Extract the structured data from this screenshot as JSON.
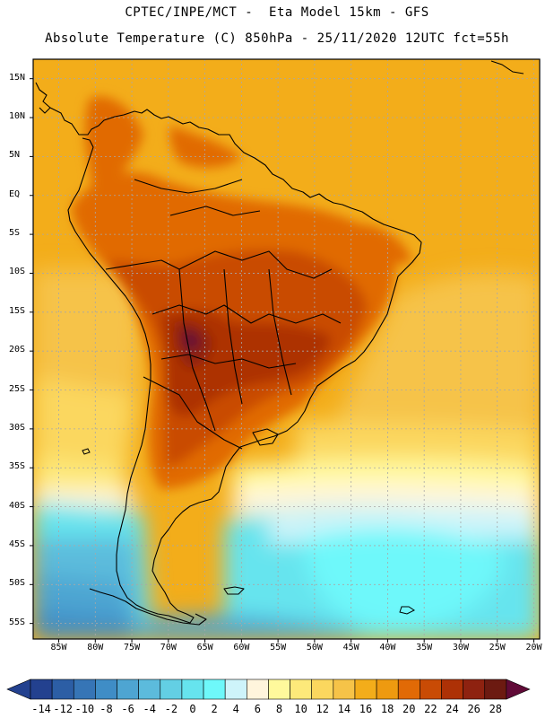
{
  "header": {
    "title_line1": "CPTEC/INPE/MCT -  Eta Model 15km - GFS",
    "title_line2": "Absolute Temperature (C) 850hPa - 25/11/2020 12UTC fct=55h"
  },
  "map": {
    "lat_ticks": [
      {
        "lat": 15,
        "label": "15N"
      },
      {
        "lat": 10,
        "label": "10N"
      },
      {
        "lat": 5,
        "label": "5N"
      },
      {
        "lat": 0,
        "label": "EQ"
      },
      {
        "lat": -5,
        "label": "5S"
      },
      {
        "lat": -10,
        "label": "10S"
      },
      {
        "lat": -15,
        "label": "15S"
      },
      {
        "lat": -20,
        "label": "20S"
      },
      {
        "lat": -25,
        "label": "25S"
      },
      {
        "lat": -30,
        "label": "30S"
      },
      {
        "lat": -35,
        "label": "35S"
      },
      {
        "lat": -40,
        "label": "40S"
      },
      {
        "lat": -45,
        "label": "45S"
      },
      {
        "lat": -50,
        "label": "50S"
      },
      {
        "lat": -55,
        "label": "55S"
      }
    ],
    "lon_ticks": [
      {
        "lon": -85,
        "label": "85W"
      },
      {
        "lon": -80,
        "label": "80W"
      },
      {
        "lon": -75,
        "label": "75W"
      },
      {
        "lon": -70,
        "label": "70W"
      },
      {
        "lon": -65,
        "label": "65W"
      },
      {
        "lon": -60,
        "label": "60W"
      },
      {
        "lon": -55,
        "label": "55W"
      },
      {
        "lon": -50,
        "label": "50W"
      },
      {
        "lon": -45,
        "label": "45W"
      },
      {
        "lon": -40,
        "label": "40W"
      },
      {
        "lon": -35,
        "label": "35W"
      },
      {
        "lon": -30,
        "label": "30W"
      },
      {
        "lon": -25,
        "label": "25W"
      },
      {
        "lon": -20,
        "label": "20W"
      }
    ]
  },
  "colorbar": {
    "labels": [
      "-14",
      "-12",
      "-10",
      "-8",
      "-6",
      "-4",
      "-2",
      "0",
      "2",
      "4",
      "6",
      "8",
      "10",
      "12",
      "14",
      "16",
      "18",
      "20",
      "22",
      "24",
      "26",
      "28"
    ],
    "colors": [
      "#23418f",
      "#2c5ea5",
      "#3675b6",
      "#3f8dc6",
      "#4ea5d2",
      "#5cbbdc",
      "#63cfe4",
      "#66e4ee",
      "#6ef8fa",
      "#cef4fa",
      "#fff5dc",
      "#fff99c",
      "#fde97a",
      "#fbd75e",
      "#f6c348",
      "#f3ad1a",
      "#ee9a10",
      "#e16a06",
      "#c94b05",
      "#ad3106",
      "#8e2210",
      "#6c1a11",
      "#600a37"
    ]
  }
}
